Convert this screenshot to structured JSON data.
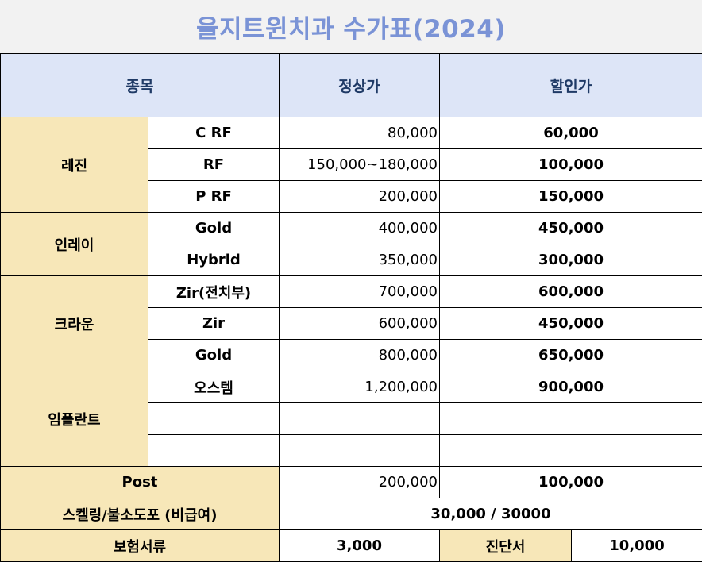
{
  "title": "을지트윈치과 수가표(2024)",
  "header": {
    "col_item": "종목",
    "col_regular": "정상가",
    "col_discount": "할인가"
  },
  "categories": {
    "resin": "레진",
    "inlay": "인레이",
    "crown": "크라운",
    "implant": "임플란트"
  },
  "rows": [
    {
      "name": "C RF",
      "regular": "80,000",
      "discount": "60,000"
    },
    {
      "name": "RF",
      "regular": "150,000~180,000",
      "discount": "100,000"
    },
    {
      "name": "P RF",
      "regular": "200,000",
      "discount": "150,000"
    },
    {
      "name": "Gold",
      "regular": "400,000",
      "discount": "450,000"
    },
    {
      "name": "Hybrid",
      "regular": "350,000",
      "discount": "300,000"
    },
    {
      "name": "Zir(전치부)",
      "regular": "700,000",
      "discount": "600,000"
    },
    {
      "name": "Zir",
      "regular": "600,000",
      "discount": "450,000"
    },
    {
      "name": "Gold",
      "regular": "800,000",
      "discount": "650,000"
    },
    {
      "name": "오스템",
      "regular": "1,200,000",
      "discount": "900,000"
    }
  ],
  "post": {
    "label": "Post",
    "regular": "200,000",
    "discount": "100,000"
  },
  "scaling": {
    "label": "스켈링/불소도포 (비급여)",
    "value": "30,000 / 30000"
  },
  "insurance": {
    "label": "보험서류",
    "value": "3,000",
    "diag_label": "진단서",
    "diag_value": "10,000"
  }
}
